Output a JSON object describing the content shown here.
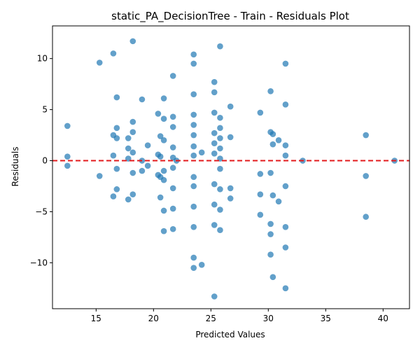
{
  "chart_data": {
    "type": "scatter",
    "title": "static_PA_DecisionTree - Train - Residuals Plot",
    "xlabel": "Predicted Values",
    "ylabel": "Residuals",
    "xlim": [
      11.2,
      42.3
    ],
    "ylim": [
      -14.5,
      13.2
    ],
    "xticks": [
      15,
      20,
      25,
      30,
      35,
      40
    ],
    "yticks": [
      -10,
      -5,
      0,
      5,
      10
    ],
    "grid": false,
    "reference_line": {
      "y": 0,
      "style": "dashed",
      "color": "#e31a1c"
    },
    "point_color": "#1f77b4",
    "series": [
      {
        "points": [
          [
            12.5,
            3.4
          ],
          [
            12.5,
            0.4
          ],
          [
            12.5,
            -0.5
          ],
          [
            15.3,
            9.6
          ],
          [
            15.3,
            -1.5
          ],
          [
            16.5,
            10.5
          ],
          [
            16.5,
            2.5
          ],
          [
            16.5,
            0.5
          ],
          [
            16.5,
            -3.5
          ],
          [
            16.8,
            6.2
          ],
          [
            16.8,
            3.2
          ],
          [
            16.8,
            2.2
          ],
          [
            16.8,
            -0.8
          ],
          [
            16.8,
            -2.8
          ],
          [
            17.8,
            2.2
          ],
          [
            17.8,
            1.2
          ],
          [
            17.8,
            0.2
          ],
          [
            17.8,
            -3.8
          ],
          [
            18.2,
            11.7
          ],
          [
            18.2,
            3.8
          ],
          [
            18.2,
            2.8
          ],
          [
            18.2,
            0.8
          ],
          [
            18.2,
            -1.2
          ],
          [
            18.2,
            -3.3
          ],
          [
            19.0,
            6.0
          ],
          [
            19.0,
            0.0
          ],
          [
            19.0,
            -1.0
          ],
          [
            19.5,
            1.5
          ],
          [
            19.5,
            -0.5
          ],
          [
            20.4,
            4.6
          ],
          [
            20.4,
            0.6
          ],
          [
            20.4,
            -1.4
          ],
          [
            20.6,
            2.4
          ],
          [
            20.6,
            0.4
          ],
          [
            20.6,
            -1.6
          ],
          [
            20.6,
            -3.6
          ],
          [
            20.9,
            6.1
          ],
          [
            20.9,
            4.1
          ],
          [
            20.9,
            2.0
          ],
          [
            20.9,
            -1.0
          ],
          [
            20.9,
            -1.9
          ],
          [
            20.9,
            -4.9
          ],
          [
            20.9,
            -6.9
          ],
          [
            21.7,
            8.3
          ],
          [
            21.7,
            4.3
          ],
          [
            21.7,
            3.3
          ],
          [
            21.7,
            1.3
          ],
          [
            21.7,
            0.3
          ],
          [
            21.7,
            -0.7
          ],
          [
            21.7,
            -2.7
          ],
          [
            21.7,
            -4.7
          ],
          [
            21.7,
            -6.7
          ],
          [
            22.0,
            0.0
          ],
          [
            23.5,
            10.4
          ],
          [
            23.5,
            9.5
          ],
          [
            23.5,
            6.5
          ],
          [
            23.5,
            4.5
          ],
          [
            23.5,
            3.5
          ],
          [
            23.5,
            2.5
          ],
          [
            23.5,
            1.4
          ],
          [
            23.5,
            0.5
          ],
          [
            23.5,
            -1.6
          ],
          [
            23.5,
            -2.5
          ],
          [
            23.5,
            -4.5
          ],
          [
            23.5,
            -6.5
          ],
          [
            23.5,
            -9.5
          ],
          [
            23.5,
            -10.5
          ],
          [
            24.2,
            0.8
          ],
          [
            24.2,
            -10.2
          ],
          [
            25.3,
            7.7
          ],
          [
            25.3,
            6.7
          ],
          [
            25.3,
            4.7
          ],
          [
            25.3,
            2.7
          ],
          [
            25.3,
            1.7
          ],
          [
            25.3,
            0.7
          ],
          [
            25.3,
            -2.3
          ],
          [
            25.3,
            -4.3
          ],
          [
            25.3,
            -6.3
          ],
          [
            25.3,
            -13.3
          ],
          [
            25.8,
            11.2
          ],
          [
            25.8,
            4.2
          ],
          [
            25.8,
            3.2
          ],
          [
            25.8,
            2.2
          ],
          [
            25.8,
            1.2
          ],
          [
            25.8,
            0.2
          ],
          [
            25.8,
            -0.8
          ],
          [
            25.8,
            -2.8
          ],
          [
            25.8,
            -4.8
          ],
          [
            25.8,
            -6.8
          ],
          [
            26.7,
            5.3
          ],
          [
            26.7,
            2.3
          ],
          [
            26.7,
            -2.7
          ],
          [
            26.7,
            -3.7
          ],
          [
            29.3,
            4.7
          ],
          [
            29.3,
            -1.3
          ],
          [
            29.3,
            -3.3
          ],
          [
            29.3,
            -5.3
          ],
          [
            30.2,
            6.8
          ],
          [
            30.2,
            2.8
          ],
          [
            30.2,
            -1.2
          ],
          [
            30.2,
            -6.2
          ],
          [
            30.2,
            -7.2
          ],
          [
            30.2,
            -9.2
          ],
          [
            30.4,
            2.6
          ],
          [
            30.4,
            1.6
          ],
          [
            30.4,
            -3.4
          ],
          [
            30.4,
            -11.4
          ],
          [
            30.9,
            2.0
          ],
          [
            30.9,
            -4.0
          ],
          [
            31.5,
            9.5
          ],
          [
            31.5,
            5.5
          ],
          [
            31.5,
            1.5
          ],
          [
            31.5,
            0.5
          ],
          [
            31.5,
            -2.5
          ],
          [
            31.5,
            -6.5
          ],
          [
            31.5,
            -8.5
          ],
          [
            31.5,
            -12.5
          ],
          [
            33.0,
            0.0
          ],
          [
            38.5,
            2.5
          ],
          [
            38.5,
            -1.5
          ],
          [
            38.5,
            -5.5
          ],
          [
            41.0,
            0.0
          ]
        ]
      }
    ]
  }
}
